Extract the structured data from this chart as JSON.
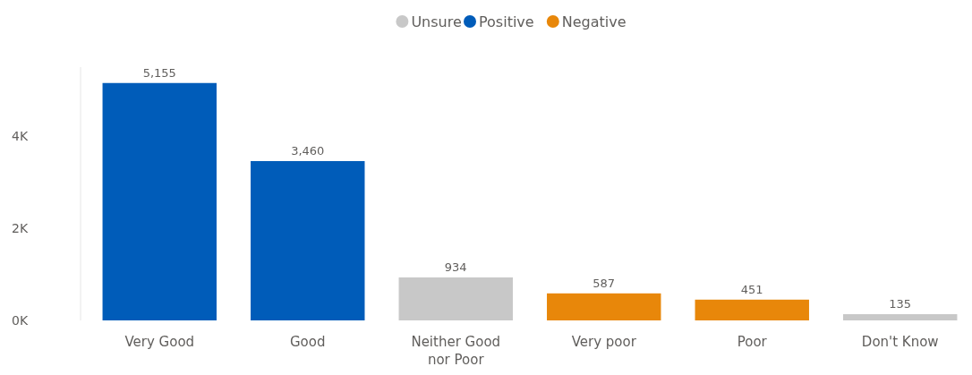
{
  "chart_data": {
    "type": "bar",
    "categories": [
      "Very Good",
      "Good",
      "Neither Good nor Poor",
      "Very poor",
      "Poor",
      "Don't Know"
    ],
    "series": [
      {
        "name": "Unsure",
        "color": "#c8c8c8",
        "values": [
          null,
          null,
          934,
          null,
          null,
          135
        ],
        "value_labels": [
          null,
          null,
          "934",
          null,
          null,
          "135"
        ]
      },
      {
        "name": "Positive",
        "color": "#005cb9",
        "values": [
          5155,
          3460,
          null,
          null,
          null,
          null
        ],
        "value_labels": [
          "5,155",
          "3,460",
          null,
          null,
          null,
          null
        ]
      },
      {
        "name": "Negative",
        "color": "#e8870a",
        "values": [
          null,
          null,
          null,
          587,
          451,
          null
        ],
        "value_labels": [
          null,
          null,
          null,
          "587",
          "451",
          null
        ]
      }
    ],
    "ylim": [
      0,
      5500
    ],
    "yticks": [
      {
        "value": 0,
        "label": "0K"
      },
      {
        "value": 2000,
        "label": "2K"
      },
      {
        "value": 4000,
        "label": "4K"
      }
    ],
    "legend": "top"
  }
}
